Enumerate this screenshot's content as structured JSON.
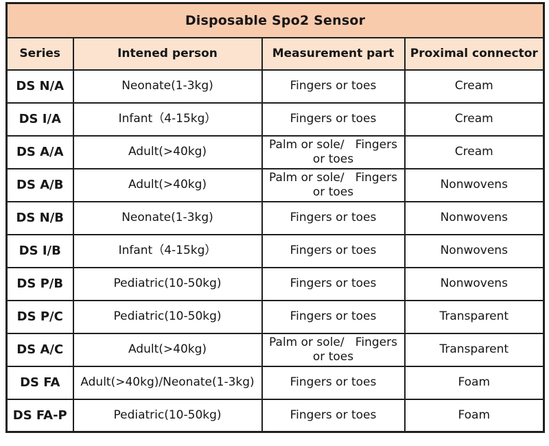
{
  "table": {
    "title": "Disposable Spo2 Sensor",
    "columns": [
      "Series",
      "Intened person",
      "Measurement part",
      "Proximal connector"
    ],
    "rows": [
      {
        "series": "DS N/A",
        "person": "Neonate(1-3kg)",
        "part": "Fingers or toes",
        "connector": "Cream"
      },
      {
        "series": "DS I/A",
        "person": "Infant（4-15kg）",
        "part": "Fingers or toes",
        "connector": "Cream"
      },
      {
        "series": "DS A/A",
        "person": "Adult(>40kg)",
        "part": "Palm or sole/   Fingers\nor toes",
        "connector": "Cream"
      },
      {
        "series": "DS A/B",
        "person": "Adult(>40kg)",
        "part": "Palm or sole/   Fingers\nor toes",
        "connector": "Nonwovens"
      },
      {
        "series": "DS N/B",
        "person": "Neonate(1-3kg)",
        "part": "Fingers or toes",
        "connector": "Nonwovens"
      },
      {
        "series": "DS I/B",
        "person": "Infant（4-15kg）",
        "part": "Fingers or toes",
        "connector": "Nonwovens"
      },
      {
        "series": "DS P/B",
        "person": "Pediatric(10-50kg)",
        "part": "Fingers or toes",
        "connector": "Nonwovens"
      },
      {
        "series": "DS P/C",
        "person": "Pediatric(10-50kg)",
        "part": "Fingers or toes",
        "connector": "Transparent"
      },
      {
        "series": "DS A/C",
        "person": "Adult(>40kg)",
        "part": "Palm or sole/   Fingers\nor toes",
        "connector": "Transparent"
      },
      {
        "series": "DS FA",
        "person": "Adult(>40kg)/Neonate(1-3kg)",
        "part": "Fingers or toes",
        "connector": "Foam"
      },
      {
        "series": "DS FA-P",
        "person": "Pediatric(10-50kg)",
        "part": "Fingers or toes",
        "connector": "Foam"
      }
    ]
  },
  "colors": {
    "title_bg": "#f8cbad",
    "header_bg": "#fbe3cf",
    "border": "#1f1f1f",
    "text": "#161616",
    "row_bg": "#ffffff"
  }
}
